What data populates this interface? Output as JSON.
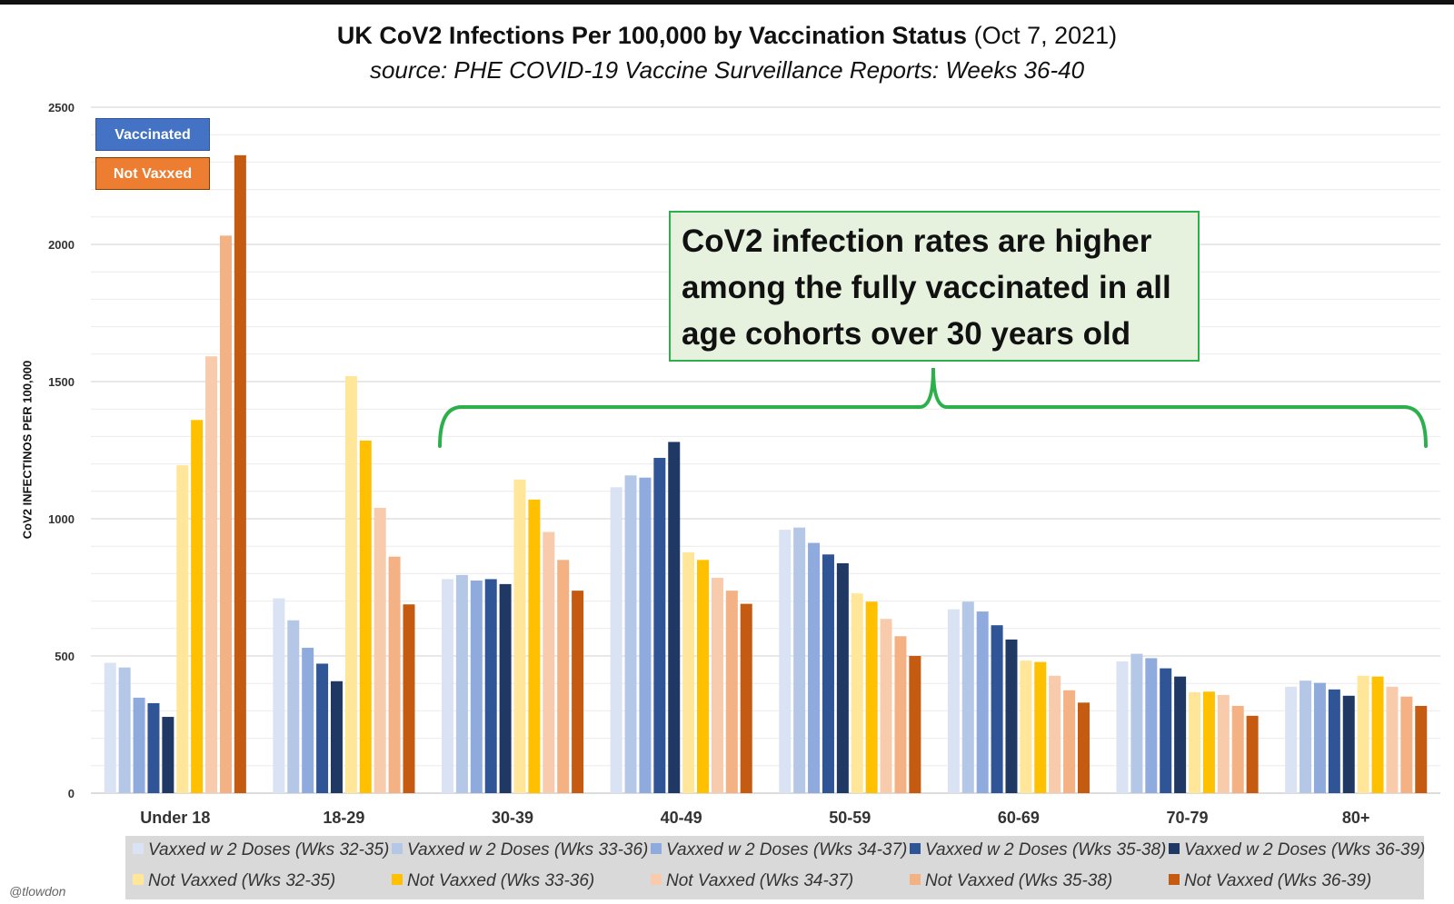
{
  "header": {
    "title_bold": "UK CoV2 Infections Per 100,000 by Vaccination Status",
    "title_date": "(Oct 7, 2021)",
    "subtitle": "source: PHE COVID-19 Vaccine Surveillance Reports: Weeks 36-40"
  },
  "key": {
    "vaccinated": "Vaccinated",
    "not_vaxxed": "Not Vaxxed"
  },
  "callout": {
    "text": "CoV2 infection rates are higher among the fully vaccinated in all age cohorts over 30 years old"
  },
  "credit": "@tlowdon",
  "colors": {
    "vaccinated_key": "#4472c4",
    "not_vaxxed_key": "#ed7d31",
    "callout_border": "#2db04c",
    "callout_fill": "#e6f2dd",
    "bracket": "#2db04c"
  },
  "chart_data": {
    "type": "bar",
    "title": "UK CoV2 Infections Per 100,000 by Vaccination Status (Oct 7, 2021)",
    "ylabel": "CoV2 INFECTINOS PER 100,000",
    "xlabel": "",
    "ylim": [
      0,
      2500
    ],
    "yticks": [
      0,
      500,
      1000,
      1500,
      2000,
      2500
    ],
    "grid": true,
    "legend_position": "bottom",
    "categories": [
      "Under 18",
      "18-29",
      "30-39",
      "40-49",
      "50-59",
      "60-69",
      "70-79",
      "80+"
    ],
    "series": [
      {
        "name": "Vaxxed w 2 Doses (Wks 32-35)",
        "color": "#dae3f3",
        "values": [
          475,
          710,
          780,
          1115,
          960,
          670,
          480,
          388
        ]
      },
      {
        "name": "Vaxxed w 2 Doses (Wks 33-36)",
        "color": "#b4c7e7",
        "values": [
          458,
          630,
          795,
          1158,
          968,
          698,
          508,
          410
        ]
      },
      {
        "name": "Vaxxed w 2 Doses (Wks 34-37)",
        "color": "#8faadc",
        "values": [
          348,
          530,
          775,
          1150,
          912,
          662,
          492,
          402
        ]
      },
      {
        "name": "Vaxxed w 2 Doses (Wks 35-38)",
        "color": "#2f5597",
        "values": [
          328,
          472,
          780,
          1222,
          870,
          612,
          455,
          378
        ]
      },
      {
        "name": "Vaxxed w 2 Doses (Wks 36-39)",
        "color": "#1f3864",
        "values": [
          278,
          408,
          762,
          1280,
          838,
          560,
          425,
          355
        ]
      },
      {
        "name": "Not Vaxxed (Wks 32-35)",
        "color": "#ffe699",
        "values": [
          1195,
          1520,
          1143,
          878,
          728,
          483,
          368,
          428
        ]
      },
      {
        "name": "Not Vaxxed (Wks 33-36)",
        "color": "#ffc000",
        "values": [
          1360,
          1285,
          1070,
          850,
          698,
          478,
          370,
          425
        ]
      },
      {
        "name": "Not Vaxxed (Wks 34-37)",
        "color": "#f8cbad",
        "values": [
          1592,
          1040,
          952,
          785,
          635,
          428,
          358,
          388
        ]
      },
      {
        "name": "Not Vaxxed (Wks 35-38)",
        "color": "#f4b183",
        "values": [
          2032,
          862,
          850,
          738,
          572,
          375,
          318,
          352
        ]
      },
      {
        "name": "Not Vaxxed (Wks 36-39)",
        "color": "#c55a11",
        "values": [
          2325,
          688,
          738,
          690,
          500,
          330,
          282,
          318
        ]
      }
    ]
  }
}
